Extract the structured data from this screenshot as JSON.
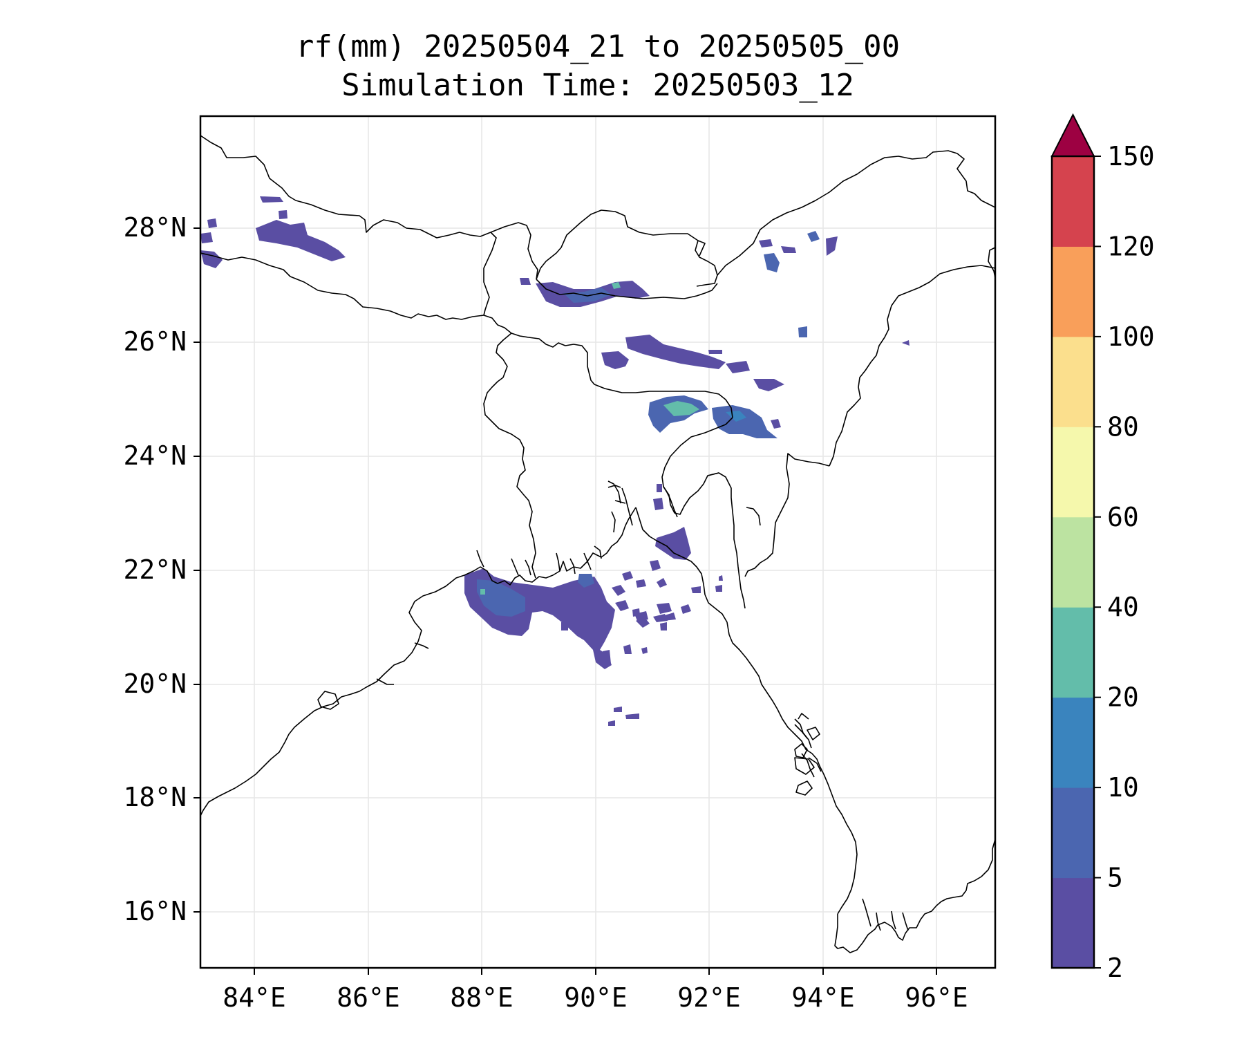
{
  "title": {
    "line1": "rf(mm) 20250504_21 to 20250505_00",
    "line2": "Simulation Time: 20250503_12"
  },
  "map": {
    "lon_range": [
      83,
      97
    ],
    "lat_range": [
      15,
      30
    ],
    "x_ticks": [
      "84°E",
      "86°E",
      "88°E",
      "90°E",
      "92°E",
      "94°E",
      "96°E"
    ],
    "y_ticks": [
      "28°N",
      "26°N",
      "24°N",
      "22°N",
      "20°N",
      "18°N",
      "16°N"
    ],
    "gridlines": true,
    "coastline_color": "#000000",
    "region": "Bay of Bengal, Bangladesh and Northeast India"
  },
  "colorbar": {
    "labels": [
      "2",
      "5",
      "10",
      "20",
      "40",
      "60",
      "80",
      "100",
      "120",
      "150"
    ],
    "colors": [
      "#5a4ea3",
      "#4b66b0",
      "#3a84be",
      "#63bdaa",
      "#bce3a1",
      "#f5f8ac",
      "#fbdf8d",
      "#f99f5a",
      "#d5434e"
    ],
    "extend_color": "#9d0142",
    "extend": "max"
  },
  "chart_data": {
    "type": "heatmap",
    "variable": "rf(mm)",
    "levels": [
      2,
      5,
      10,
      20,
      40,
      60,
      80,
      100,
      120,
      150
    ],
    "rain_cells": [
      {
        "lon": 84.8,
        "lat": 28.0,
        "level": "2-5"
      },
      {
        "lon": 83.3,
        "lat": 27.6,
        "level": "2-5"
      },
      {
        "lon": 89.8,
        "lat": 26.9,
        "level": "5-20"
      },
      {
        "lon": 91.5,
        "lat": 25.9,
        "level": "2-5"
      },
      {
        "lon": 91.4,
        "lat": 24.9,
        "level": "10-40"
      },
      {
        "lon": 92.6,
        "lat": 24.7,
        "level": "5-20"
      },
      {
        "lon": 93.3,
        "lat": 27.5,
        "level": "2-5"
      },
      {
        "lon": 88.8,
        "lat": 21.4,
        "level": "5-20"
      },
      {
        "lon": 91.3,
        "lat": 22.5,
        "level": "2-5"
      },
      {
        "lon": 90.2,
        "lat": 21.0,
        "level": "2-5"
      }
    ]
  }
}
